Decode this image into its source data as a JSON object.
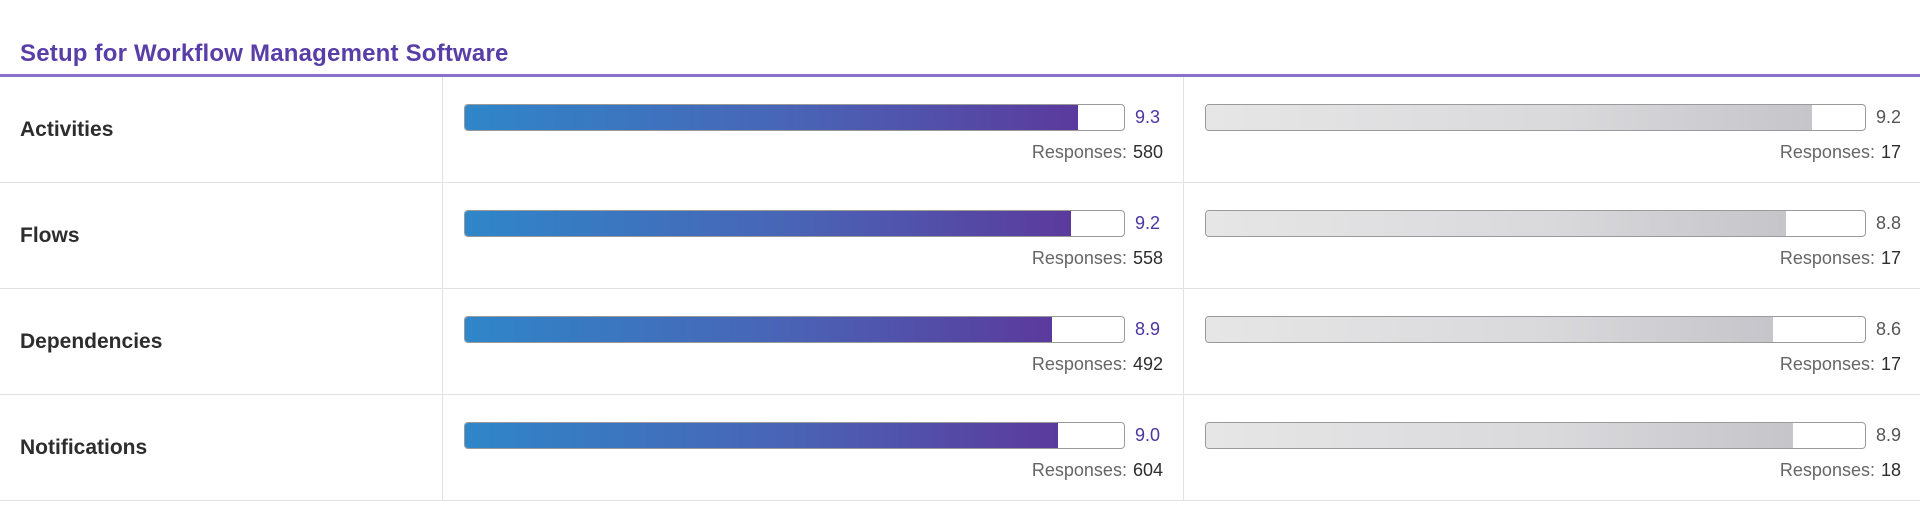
{
  "section": {
    "title": "Setup for Workflow Management Software"
  },
  "colors": {
    "title": "#5a3ea8",
    "primary_fill_start": "#2f86c9",
    "primary_fill_end": "#5b3a9d",
    "secondary_fill": "#d9d9dc"
  },
  "responses_label": "Responses:",
  "score_max": 10,
  "rows": [
    {
      "label": "Activities",
      "primary": {
        "score": "9.3",
        "responses": "580"
      },
      "secondary": {
        "score": "9.2",
        "responses": "17"
      }
    },
    {
      "label": "Flows",
      "primary": {
        "score": "9.2",
        "responses": "558"
      },
      "secondary": {
        "score": "8.8",
        "responses": "17"
      }
    },
    {
      "label": "Dependencies",
      "primary": {
        "score": "8.9",
        "responses": "492"
      },
      "secondary": {
        "score": "8.6",
        "responses": "17"
      }
    },
    {
      "label": "Notifications",
      "primary": {
        "score": "9.0",
        "responses": "604"
      },
      "secondary": {
        "score": "8.9",
        "responses": "18"
      }
    }
  ]
}
